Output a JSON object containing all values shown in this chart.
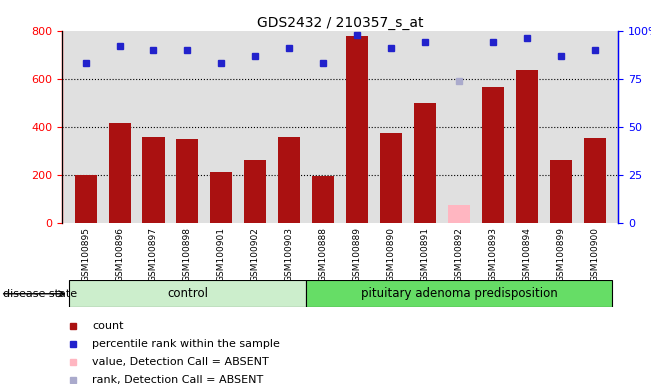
{
  "title": "GDS2432 / 210357_s_at",
  "samples": [
    "GSM100895",
    "GSM100896",
    "GSM100897",
    "GSM100898",
    "GSM100901",
    "GSM100902",
    "GSM100903",
    "GSM100888",
    "GSM100889",
    "GSM100890",
    "GSM100891",
    "GSM100892",
    "GSM100893",
    "GSM100894",
    "GSM100899",
    "GSM100900"
  ],
  "counts": [
    200,
    415,
    358,
    348,
    210,
    260,
    358,
    195,
    778,
    375,
    500,
    75,
    565,
    638,
    260,
    355
  ],
  "absent_count_idx": [
    11
  ],
  "percentile_ranks": [
    83,
    92,
    90,
    90,
    83,
    87,
    91,
    83,
    98,
    91,
    94,
    74,
    94,
    96,
    87,
    90
  ],
  "absent_rank_idx": [
    11
  ],
  "control_count": 7,
  "pituitary_count": 9,
  "ylim_left": [
    0,
    800
  ],
  "ylim_right": [
    0,
    100
  ],
  "yticks_left": [
    0,
    200,
    400,
    600,
    800
  ],
  "yticks_right": [
    0,
    25,
    50,
    75,
    100
  ],
  "bar_color": "#AA1111",
  "absent_bar_color": "#FFB6C1",
  "rank_color": "#2222CC",
  "absent_rank_color": "#AAAACC",
  "control_bg": "#CCEECC",
  "pituitary_bg": "#66DD66",
  "plot_bg": "#E0E0E0",
  "legend_items": [
    {
      "color": "#AA1111",
      "label": "count",
      "marker": "s"
    },
    {
      "color": "#2222CC",
      "label": "percentile rank within the sample",
      "marker": "s"
    },
    {
      "color": "#FFB6C1",
      "label": "value, Detection Call = ABSENT",
      "marker": "s"
    },
    {
      "color": "#AAAACC",
      "label": "rank, Detection Call = ABSENT",
      "marker": "s"
    }
  ]
}
